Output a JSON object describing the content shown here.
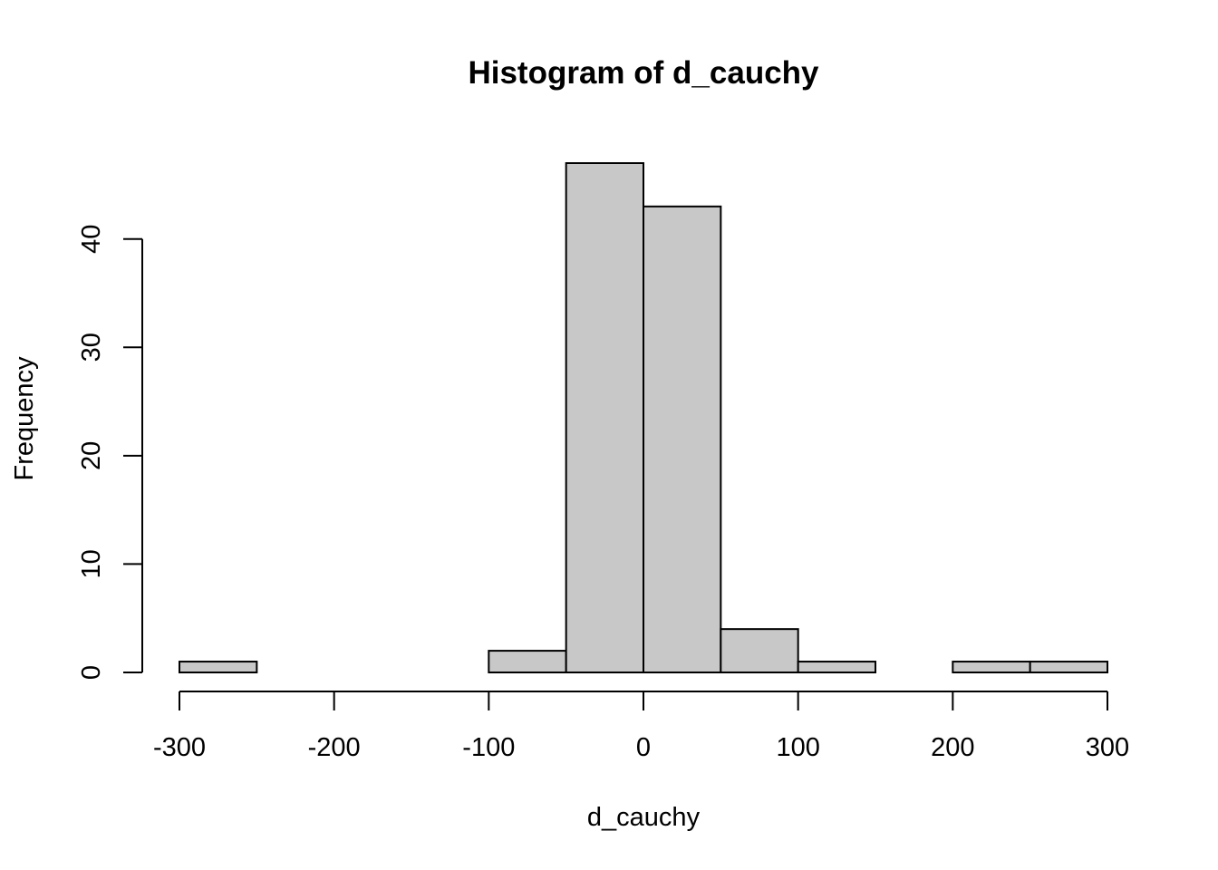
{
  "chart_data": {
    "type": "bar",
    "title": "Histogram of d_cauchy",
    "xlabel": "d_cauchy",
    "ylabel": "Frequency",
    "bins": [
      {
        "from": -300,
        "to": -250,
        "count": 1
      },
      {
        "from": -250,
        "to": -200,
        "count": 0
      },
      {
        "from": -200,
        "to": -150,
        "count": 0
      },
      {
        "from": -150,
        "to": -100,
        "count": 0
      },
      {
        "from": -100,
        "to": -50,
        "count": 2
      },
      {
        "from": -50,
        "to": 0,
        "count": 47
      },
      {
        "from": 0,
        "to": 50,
        "count": 43
      },
      {
        "from": 50,
        "to": 100,
        "count": 4
      },
      {
        "from": 100,
        "to": 150,
        "count": 1
      },
      {
        "from": 150,
        "to": 200,
        "count": 0
      },
      {
        "from": 200,
        "to": 250,
        "count": 1
      },
      {
        "from": 250,
        "to": 300,
        "count": 1
      }
    ],
    "x_ticks": [
      -300,
      -200,
      -100,
      0,
      100,
      200,
      300
    ],
    "x_tick_labels": [
      "-300",
      "-200",
      "-100",
      "0",
      "100",
      "200",
      "300"
    ],
    "y_ticks": [
      0,
      10,
      20,
      30,
      40
    ],
    "y_tick_labels": [
      "0",
      "10",
      "20",
      "30",
      "40"
    ],
    "xlim": [
      -300,
      300
    ],
    "ylim": [
      0,
      47
    ],
    "grid": false,
    "legend": "none",
    "colors": {
      "bar_fill": "#c8c8c8",
      "bar_stroke": "#000000"
    }
  }
}
